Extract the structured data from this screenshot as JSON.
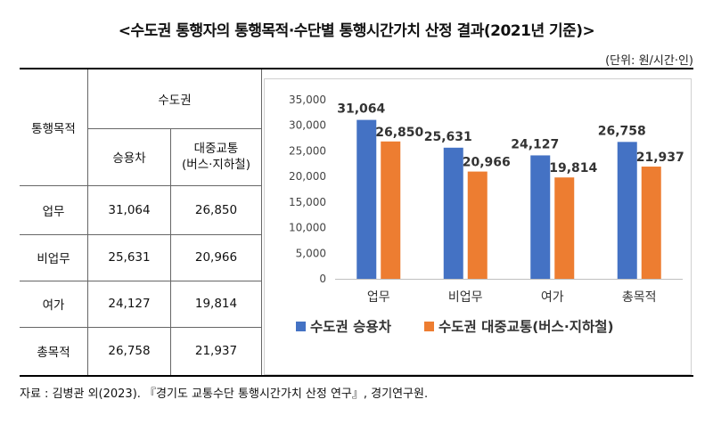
{
  "title": "<수도권 통행자의 통행목적·수단별 통행시간가치 산정 결과(2021년 기준)>",
  "unit_note": "(단위: 원/시간·인)",
  "table": {
    "corner_header": "통행목적",
    "group_header": "수도권",
    "col_headers": [
      "승용차",
      "대중교통\n(버스·지하철)"
    ],
    "rows": [
      {
        "label": "업무",
        "values": [
          "31,064",
          "26,850"
        ]
      },
      {
        "label": "비업무",
        "values": [
          "25,631",
          "20,966"
        ]
      },
      {
        "label": "여가",
        "values": [
          "24,127",
          "19,814"
        ]
      },
      {
        "label": "총목적",
        "values": [
          "26,758",
          "21,937"
        ]
      }
    ]
  },
  "chart_data": {
    "type": "bar",
    "categories": [
      "업무",
      "비업무",
      "여가",
      "총목적"
    ],
    "series": [
      {
        "name": "수도권 승용차",
        "color": "#4472C4",
        "values": [
          31064,
          25631,
          24127,
          26758
        ],
        "labels": [
          "31,064",
          "25,631",
          "24,127",
          "26,758"
        ]
      },
      {
        "name": "수도권 대중교통(버스·지하철)",
        "color": "#ED7D31",
        "values": [
          26850,
          20966,
          19814,
          21937
        ],
        "labels": [
          "26,850",
          "20,966",
          "19,814",
          "21,937"
        ]
      }
    ],
    "ylim": [
      0,
      35000
    ],
    "yticks": [
      0,
      5000,
      10000,
      15000,
      20000,
      25000,
      30000,
      35000
    ],
    "ytick_labels": [
      "0",
      "5,000",
      "10,000",
      "15,000",
      "20,000",
      "25,000",
      "30,000",
      "35,000"
    ],
    "grid": false,
    "legend": "bottom"
  },
  "footnote": "자료 : 김병관 외(2023). 『경기도 교통수단 통행시간가치 산정 연구』, 경기연구원."
}
